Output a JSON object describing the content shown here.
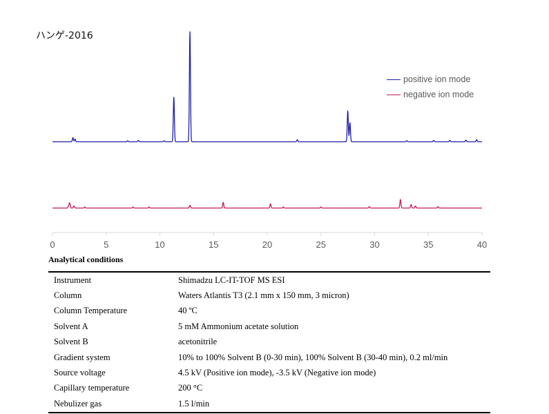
{
  "title": "ハンゲ-2016",
  "chart_data": {
    "type": "line",
    "xlim": [
      0,
      40
    ],
    "x_ticks": [
      0,
      5,
      10,
      15,
      20,
      25,
      30,
      35,
      40
    ],
    "legend": [
      {
        "name": "positive ion mode",
        "color": "#1f1fa8"
      },
      {
        "name": "negative ion mode",
        "color": "#c2185b"
      }
    ],
    "legend_position": "top-right",
    "y_axis_shown": false,
    "series": [
      {
        "name": "positive ion mode",
        "color": "#1f1fa8",
        "peaks": [
          {
            "x": 1.9,
            "height": 6
          },
          {
            "x": 2.1,
            "height": 4
          },
          {
            "x": 7.0,
            "height": 1.5
          },
          {
            "x": 8.0,
            "height": 2
          },
          {
            "x": 10.4,
            "height": 1.5
          },
          {
            "x": 11.3,
            "height": 65
          },
          {
            "x": 12.8,
            "height": 160
          },
          {
            "x": 22.8,
            "height": 3
          },
          {
            "x": 27.5,
            "height": 45
          },
          {
            "x": 27.7,
            "height": 28
          },
          {
            "x": 33.0,
            "height": 1.5
          },
          {
            "x": 35.5,
            "height": 2
          },
          {
            "x": 37.0,
            "height": 2
          },
          {
            "x": 38.5,
            "height": 2.5
          },
          {
            "x": 39.5,
            "height": 3
          }
        ]
      },
      {
        "name": "negative ion mode",
        "color": "#c2185b",
        "peaks": [
          {
            "x": 1.5,
            "height": 3
          },
          {
            "x": 1.6,
            "height": 7
          },
          {
            "x": 2.0,
            "height": 3
          },
          {
            "x": 3.0,
            "height": 1.5
          },
          {
            "x": 7.5,
            "height": 1.5
          },
          {
            "x": 9.0,
            "height": 1.5
          },
          {
            "x": 12.8,
            "height": 4
          },
          {
            "x": 15.9,
            "height": 8
          },
          {
            "x": 20.3,
            "height": 6
          },
          {
            "x": 21.5,
            "height": 1.5
          },
          {
            "x": 25.0,
            "height": 1.5
          },
          {
            "x": 29.5,
            "height": 2
          },
          {
            "x": 32.4,
            "height": 12
          },
          {
            "x": 33.4,
            "height": 5
          },
          {
            "x": 33.8,
            "height": 3
          },
          {
            "x": 35.9,
            "height": 2
          }
        ]
      }
    ]
  },
  "conditions": {
    "heading": "Analytical conditions",
    "rows": [
      {
        "label": "Instrument",
        "value": "Shimadzu LC-IT-TOF MS ESI"
      },
      {
        "label": "Column",
        "value": "Waters Atlantis T3 (2.1 mm x 150 mm, 3 micron)"
      },
      {
        "label": "Column Temperature",
        "value": "40 ºC"
      },
      {
        "label": "Solvent A",
        "value": "5 mM Ammonium acetate solution"
      },
      {
        "label": "Solvent B",
        "value": "acetonitrile"
      },
      {
        "label": "Gradient system",
        "value": "10% to 100% Solvent B (0-30 min), 100% Solvent B (30-40 min), 0.2 ml/min"
      },
      {
        "label": "Source voltage",
        "value": "4.5 kV (Positive ion mode), -3.5 kV (Negative ion mode)"
      },
      {
        "label": "Capillary temperature",
        "value": "200 °C"
      },
      {
        "label": "Nebulizer gas",
        "value": "1.5 l/min"
      }
    ]
  }
}
